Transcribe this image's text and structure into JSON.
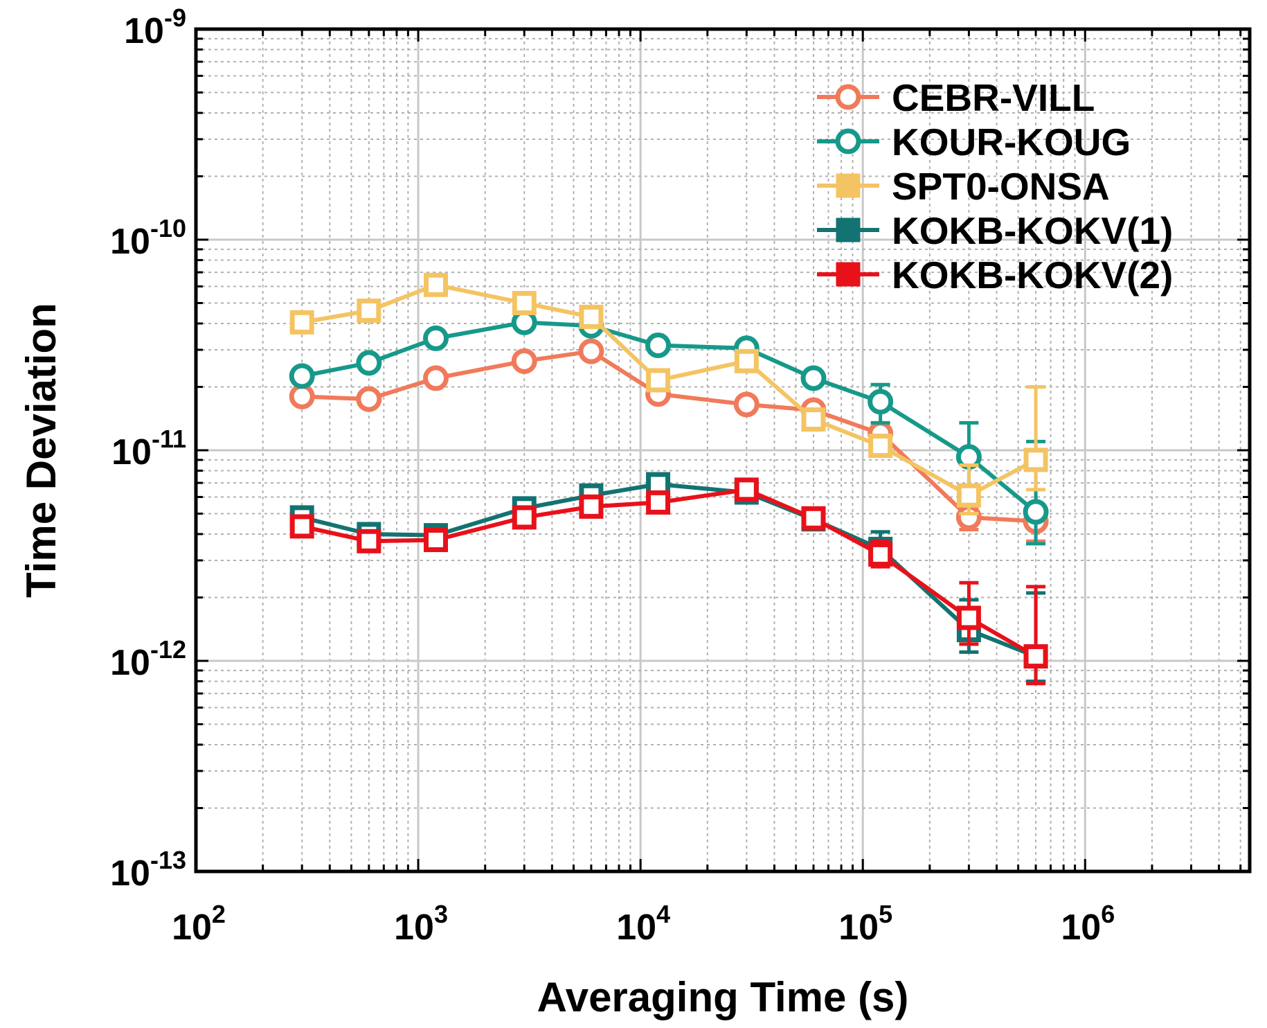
{
  "chart_data": {
    "type": "line",
    "title": "",
    "xlabel": "Averaging Time (s)",
    "ylabel": "Time Deviation",
    "xscale": "log",
    "yscale": "log",
    "xlim": [
      100,
      5500000
    ],
    "ylim": [
      1e-13,
      1e-09
    ],
    "grid": true,
    "legend_position": "top-right",
    "x_ticks": [
      {
        "base": "10",
        "exp": "2",
        "value": 100
      },
      {
        "base": "10",
        "exp": "3",
        "value": 1000
      },
      {
        "base": "10",
        "exp": "4",
        "value": 10000
      },
      {
        "base": "10",
        "exp": "5",
        "value": 100000
      },
      {
        "base": "10",
        "exp": "6",
        "value": 1000000
      }
    ],
    "y_ticks": [
      {
        "base": "10",
        "exp": "-13",
        "value": 1e-13
      },
      {
        "base": "10",
        "exp": "-12",
        "value": 1e-12
      },
      {
        "base": "10",
        "exp": "-11",
        "value": 1e-11
      },
      {
        "base": "10",
        "exp": "-10",
        "value": 1e-10
      },
      {
        "base": "10",
        "exp": "-9",
        "value": 1e-09
      }
    ],
    "x": [
      300,
      600,
      1200,
      3000,
      6000,
      12000,
      30000,
      60000,
      120000,
      300000,
      600000
    ],
    "series": [
      {
        "name": "CEBR-VILL",
        "color": "#f07a5a",
        "marker": "circle",
        "values": [
          1.8e-11,
          1.75e-11,
          2.2e-11,
          2.65e-11,
          2.95e-11,
          1.85e-11,
          1.65e-11,
          1.55e-11,
          1.2e-11,
          4.8e-12,
          4.6e-12
        ],
        "err_lo": [
          null,
          null,
          null,
          null,
          null,
          null,
          null,
          null,
          null,
          4.2e-12,
          3.7e-12
        ],
        "err_hi": [
          null,
          null,
          null,
          null,
          null,
          null,
          null,
          null,
          null,
          5.3e-12,
          5.5e-12
        ]
      },
      {
        "name": "KOUR-KOUG",
        "color": "#16998a",
        "marker": "circle",
        "values": [
          2.25e-11,
          2.6e-11,
          3.4e-11,
          4.05e-11,
          3.9e-11,
          3.15e-11,
          3.05e-11,
          2.2e-11,
          1.7e-11,
          9.3e-12,
          5.1e-12
        ],
        "err_lo": [
          null,
          null,
          null,
          null,
          null,
          null,
          null,
          null,
          1.35e-11,
          6.5e-12,
          3.6e-12
        ],
        "err_hi": [
          null,
          null,
          null,
          null,
          null,
          null,
          null,
          null,
          2.05e-11,
          1.35e-11,
          1.1e-11
        ]
      },
      {
        "name": "SPT0-ONSA",
        "color": "#f4c463",
        "marker": "square",
        "values": [
          4.05e-11,
          4.6e-11,
          6.1e-11,
          5e-11,
          4.3e-11,
          2.15e-11,
          2.65e-11,
          1.4e-11,
          1.05e-11,
          6.1e-12,
          9e-12
        ],
        "err_lo": [
          null,
          null,
          null,
          null,
          null,
          null,
          null,
          null,
          null,
          5e-12,
          6.5e-12
        ],
        "err_hi": [
          null,
          null,
          null,
          null,
          null,
          null,
          null,
          null,
          null,
          8.5e-12,
          2e-11
        ]
      },
      {
        "name": "KOKB-KOKV(1)",
        "color": "#127372",
        "marker": "square",
        "values": [
          4.8e-12,
          4e-12,
          3.95e-12,
          5.3e-12,
          6.1e-12,
          6.9e-12,
          6.3e-12,
          4.7e-12,
          3.4e-12,
          1.4e-12,
          1.05e-12
        ],
        "err_lo": [
          null,
          null,
          null,
          null,
          null,
          null,
          null,
          null,
          2.9e-12,
          1.1e-12,
          8e-13
        ],
        "err_hi": [
          null,
          null,
          null,
          null,
          null,
          null,
          null,
          null,
          4.1e-12,
          1.95e-12,
          2.1e-12
        ]
      },
      {
        "name": "KOKB-KOKV(2)",
        "color": "#e8111a",
        "marker": "square",
        "values": [
          4.35e-12,
          3.7e-12,
          3.75e-12,
          4.8e-12,
          5.4e-12,
          5.65e-12,
          6.5e-12,
          4.75e-12,
          3.2e-12,
          1.6e-12,
          1.05e-12
        ],
        "err_lo": [
          null,
          null,
          null,
          null,
          null,
          null,
          null,
          null,
          2.8e-12,
          1.2e-12,
          7.8e-13
        ],
        "err_hi": [
          null,
          null,
          null,
          null,
          null,
          null,
          null,
          null,
          3.7e-12,
          2.35e-12,
          2.25e-12
        ]
      }
    ]
  }
}
